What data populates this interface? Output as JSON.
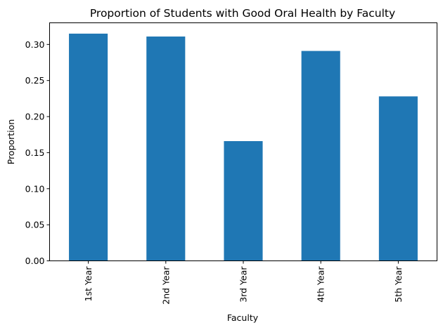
{
  "chart_data": {
    "type": "bar",
    "title": "Proportion of Students with Good Oral Health by Faculty",
    "xlabel": "Faculty",
    "ylabel": "Proportion",
    "categories": [
      "1st Year",
      "2nd Year",
      "3rd Year",
      "4th Year",
      "5th Year"
    ],
    "values": [
      0.315,
      0.311,
      0.166,
      0.291,
      0.228
    ],
    "ylim": [
      0,
      0.33
    ],
    "yticks": [
      0.0,
      0.05,
      0.1,
      0.15,
      0.2,
      0.25,
      0.3
    ],
    "ytick_labels": [
      "0.00",
      "0.05",
      "0.10",
      "0.15",
      "0.20",
      "0.25",
      "0.30"
    ],
    "grid": false,
    "legend": false,
    "bar_color": "#1f77b4"
  }
}
